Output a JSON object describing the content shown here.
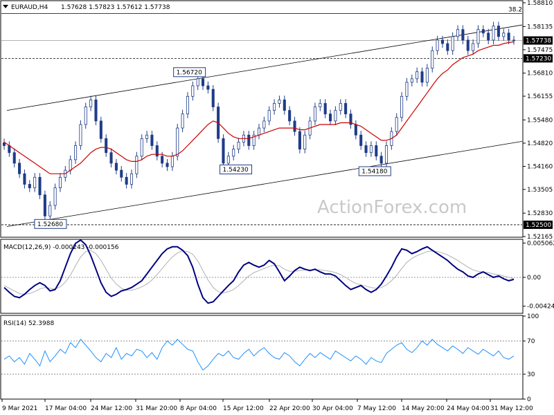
{
  "header": {
    "symbol": "EURAUD,H4",
    "ohlc": "1.57628 1.57823 1.57612 1.57738"
  },
  "watermark": "ActionForex.com",
  "chart_data": [
    {
      "type": "candlestick",
      "title": "EURAUD,H4",
      "ylim": [
        1.52165,
        1.5881
      ],
      "y_ticks": [
        "1.58810",
        "1.58135",
        "1.57475",
        "1.56810",
        "1.56155",
        "1.55480",
        "1.54820",
        "1.54160",
        "1.53505",
        "1.52830",
        "1.52165"
      ],
      "price_tags": [
        {
          "text": "1.57738",
          "value": 1.57738,
          "style": "dark"
        },
        {
          "text": "1.57230",
          "value": 1.5723,
          "style": "dark"
        },
        {
          "text": "1.52500",
          "value": 1.525,
          "style": "dark"
        }
      ],
      "fib_label": "38.2",
      "fib_level": 1.5851,
      "annotations": [
        {
          "text": "1.52680",
          "x": "17 Mar 04:00",
          "value": 1.5268
        },
        {
          "text": "1.56720",
          "x": "8 Apr 04:00",
          "value": 1.5672
        },
        {
          "text": "1.54230",
          "x": "15 Apr 12:00",
          "value": 1.5423
        },
        {
          "text": "1.54180",
          "x": "7 May 12:00",
          "value": 1.5418
        }
      ],
      "channel": {
        "upper": [
          {
            "x": "9 Mar 2021",
            "value": 1.5575
          },
          {
            "x": "31 May 12:00",
            "value": 1.5818
          }
        ],
        "lower": [
          {
            "x": "9 Mar 2021",
            "value": 1.5245
          },
          {
            "x": "31 May 12:00",
            "value": 1.5487
          }
        ]
      },
      "horizontal_lines": [
        1.58505,
        1.57738,
        1.5723,
        1.525
      ],
      "close_series": [
        1.5475,
        1.5455,
        1.5425,
        1.5395,
        1.5365,
        1.5355,
        1.5385,
        1.5335,
        1.5275,
        1.5305,
        1.5355,
        1.5385,
        1.5405,
        1.5435,
        1.5475,
        1.5535,
        1.5585,
        1.5605,
        1.5545,
        1.5495,
        1.5455,
        1.5425,
        1.5405,
        1.5385,
        1.5365,
        1.5395,
        1.5445,
        1.5495,
        1.5505,
        1.5475,
        1.5445,
        1.5425,
        1.5415,
        1.5445,
        1.5525,
        1.5565,
        1.5615,
        1.5645,
        1.5665,
        1.5645,
        1.5635,
        1.5585,
        1.5495,
        1.5425,
        1.5445,
        1.5465,
        1.5485,
        1.5505,
        1.5475,
        1.5505,
        1.5525,
        1.5545,
        1.5575,
        1.5595,
        1.5605,
        1.5575,
        1.5545,
        1.5515,
        1.5465,
        1.5505,
        1.5545,
        1.5585,
        1.5595,
        1.5565,
        1.5545,
        1.5575,
        1.5595,
        1.5565,
        1.5535,
        1.5505,
        1.5475,
        1.5455,
        1.5475,
        1.5445,
        1.5425,
        1.5475,
        1.5515,
        1.5555,
        1.5615,
        1.5655,
        1.5665,
        1.5685,
        1.5655,
        1.5695,
        1.5745,
        1.5775,
        1.5765,
        1.5745,
        1.5785,
        1.5805,
        1.5775,
        1.5745,
        1.5765,
        1.5805,
        1.5795,
        1.5775,
        1.5815,
        1.5785,
        1.5795,
        1.5775,
        1.5774
      ],
      "ma_series": [
        1.5485,
        1.5475,
        1.5465,
        1.5455,
        1.5445,
        1.5435,
        1.5425,
        1.5415,
        1.5405,
        1.5395,
        1.5395,
        1.5395,
        1.5395,
        1.5405,
        1.5415,
        1.5425,
        1.544,
        1.5455,
        1.5465,
        1.547,
        1.547,
        1.5465,
        1.5455,
        1.5445,
        1.5435,
        1.543,
        1.543,
        1.5435,
        1.5445,
        1.545,
        1.545,
        1.545,
        1.5445,
        1.5445,
        1.545,
        1.546,
        1.5475,
        1.549,
        1.5505,
        1.552,
        1.5535,
        1.5545,
        1.554,
        1.5525,
        1.551,
        1.55,
        1.5495,
        1.5495,
        1.5495,
        1.55,
        1.5505,
        1.551,
        1.5515,
        1.552,
        1.5525,
        1.5525,
        1.5525,
        1.5525,
        1.552,
        1.552,
        1.5525,
        1.553,
        1.5535,
        1.5535,
        1.5535,
        1.5535,
        1.554,
        1.554,
        1.554,
        1.5535,
        1.553,
        1.552,
        1.551,
        1.55,
        1.549,
        1.549,
        1.5495,
        1.5505,
        1.5525,
        1.5545,
        1.5565,
        1.5585,
        1.5605,
        1.5625,
        1.5645,
        1.5665,
        1.568,
        1.569,
        1.5705,
        1.5715,
        1.5725,
        1.573,
        1.5735,
        1.5745,
        1.575,
        1.5755,
        1.576,
        1.576,
        1.5765,
        1.5768,
        1.577
      ]
    },
    {
      "type": "line",
      "title": "MACD(12,26,9) -0.000243 -0.000156",
      "ylim": [
        -0.0052,
        0.0053
      ],
      "y_ticks": [
        "0.005062",
        "0.00",
        "-0.004248"
      ],
      "macd_series": [
        -0.0015,
        -0.0022,
        -0.0028,
        -0.003,
        -0.0025,
        -0.0018,
        -0.0012,
        -0.0008,
        -0.0012,
        -0.002,
        -0.0018,
        -0.0005,
        0.0015,
        0.0035,
        0.005,
        0.0055,
        0.0048,
        0.0032,
        0.0012,
        -0.0008,
        -0.0022,
        -0.0028,
        -0.0025,
        -0.002,
        -0.0018,
        -0.0015,
        -0.001,
        -0.0005,
        0.0005,
        0.0015,
        0.0025,
        0.0035,
        0.0042,
        0.0045,
        0.0045,
        0.004,
        0.0032,
        0.0015,
        -0.001,
        -0.003,
        -0.0038,
        -0.0036,
        -0.0028,
        -0.002,
        -0.0012,
        -0.0005,
        0.0008,
        0.0018,
        0.0022,
        0.0018,
        0.0015,
        0.0018,
        0.0025,
        0.002,
        0.0008,
        -0.0005,
        0.0002,
        0.001,
        0.0015,
        0.0012,
        0.001,
        0.0012,
        0.0008,
        0.0005,
        0.0005,
        0.0002,
        -0.0005,
        -0.0012,
        -0.0018,
        -0.0015,
        -0.0012,
        -0.0018,
        -0.0022,
        -0.0018,
        -0.001,
        0.0002,
        0.0015,
        0.003,
        0.0042,
        0.004,
        0.0035,
        0.0038,
        0.0042,
        0.0045,
        0.004,
        0.0035,
        0.003,
        0.0025,
        0.0018,
        0.0012,
        0.0008,
        0.0002,
        0.0,
        0.0005,
        0.0008,
        0.0004,
        0.0,
        0.0002,
        -0.0002,
        -0.0005,
        -0.0003
      ],
      "signal_series": [
        -0.0012,
        -0.0016,
        -0.002,
        -0.0024,
        -0.0025,
        -0.0024,
        -0.0021,
        -0.0017,
        -0.0015,
        -0.0016,
        -0.0017,
        -0.0014,
        -0.0007,
        0.0003,
        0.0017,
        0.003,
        0.0038,
        0.004,
        0.0035,
        0.0025,
        0.0012,
        -0.0001,
        -0.001,
        -0.0016,
        -0.0019,
        -0.0019,
        -0.0017,
        -0.0014,
        -0.001,
        -0.0004,
        0.0004,
        0.0013,
        0.0022,
        0.003,
        0.0036,
        0.0039,
        0.0038,
        0.0034,
        0.0024,
        0.001,
        -0.0004,
        -0.0015,
        -0.0021,
        -0.0023,
        -0.0021,
        -0.0018,
        -0.0012,
        -0.0005,
        0.0002,
        0.0007,
        0.001,
        0.0013,
        0.0016,
        0.0018,
        0.0017,
        0.0012,
        0.0009,
        0.0009,
        0.001,
        0.0011,
        0.0011,
        0.0011,
        0.0011,
        0.001,
        0.0009,
        0.0007,
        0.0004,
        0.0,
        -0.0005,
        -0.0009,
        -0.0011,
        -0.0013,
        -0.0015,
        -0.0016,
        -0.0015,
        -0.0011,
        -0.0005,
        0.0003,
        0.0013,
        0.0022,
        0.0028,
        0.0032,
        0.0035,
        0.0038,
        0.0039,
        0.0038,
        0.0036,
        0.0033,
        0.0029,
        0.0025,
        0.002,
        0.0015,
        0.0011,
        0.0009,
        0.0008,
        0.0007,
        0.0005,
        0.0004,
        0.0002,
        -0.0,
        -0.0002
      ]
    },
    {
      "type": "line",
      "title": "RSI(14) 52.3988",
      "ylim": [
        0,
        100
      ],
      "y_ticks": [
        "100",
        "70",
        "30",
        "0"
      ],
      "levels": [
        70,
        30
      ],
      "rsi_series": [
        48,
        52,
        45,
        50,
        42,
        55,
        48,
        40,
        58,
        45,
        52,
        60,
        55,
        68,
        62,
        72,
        65,
        58,
        50,
        45,
        55,
        50,
        62,
        48,
        55,
        52,
        60,
        58,
        50,
        56,
        48,
        62,
        70,
        65,
        72,
        66,
        60,
        58,
        45,
        35,
        40,
        48,
        55,
        52,
        58,
        50,
        48,
        55,
        60,
        52,
        58,
        62,
        55,
        50,
        48,
        56,
        52,
        45,
        40,
        48,
        55,
        50,
        56,
        52,
        48,
        58,
        54,
        50,
        46,
        52,
        48,
        42,
        50,
        46,
        44,
        55,
        60,
        65,
        68,
        60,
        56,
        62,
        70,
        65,
        72,
        66,
        62,
        58,
        64,
        60,
        55,
        62,
        58,
        54,
        60,
        56,
        52,
        58,
        50,
        48,
        52
      ]
    }
  ],
  "x_axis": {
    "labels": [
      "9 Mar 2021",
      "17 Mar 04:00",
      "24 Mar 12:00",
      "31 Mar 20:00",
      "8 Apr 04:00",
      "15 Apr 12:00",
      "22 Apr 20:00",
      "30 Apr 04:00",
      "7 May 12:00",
      "14 May 20:00",
      "24 May 04:00",
      "31 May 12:00"
    ]
  },
  "colors": {
    "candle": "#1f3c88",
    "ma": "#cc0000",
    "macd": "#000080",
    "signal": "#b0b0b0",
    "rsi": "#1e90ff",
    "grid": "#888888"
  }
}
